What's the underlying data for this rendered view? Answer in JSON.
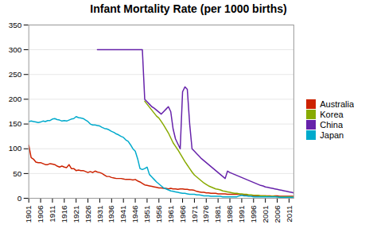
{
  "chart_data": {
    "type": "line",
    "title": "Infant Mortality Rate (per 1000 births)",
    "xlim": [
      1901,
      2013
    ],
    "xticks": [
      1901,
      1906,
      1911,
      1916,
      1921,
      1926,
      1931,
      1936,
      1941,
      1946,
      1951,
      1956,
      1961,
      1966,
      1971,
      1976,
      1981,
      1986,
      1991,
      1996,
      2001,
      2006,
      2011
    ],
    "ylim": [
      0,
      350
    ],
    "yticks": [
      0,
      50,
      100,
      150,
      200,
      250,
      300,
      350
    ],
    "grid": true,
    "legend": "right",
    "series": [
      {
        "name": "Australia",
        "color": "#cc2200",
        "x": [
          1901,
          1902,
          1903,
          1904,
          1905,
          1906,
          1907,
          1908,
          1909,
          1910,
          1911,
          1912,
          1913,
          1914,
          1915,
          1916,
          1917,
          1918,
          1919,
          1920,
          1921,
          1922,
          1923,
          1924,
          1925,
          1926,
          1927,
          1928,
          1929,
          1930,
          1931,
          1932,
          1933,
          1934,
          1935,
          1936,
          1937,
          1938,
          1939,
          1940,
          1941,
          1942,
          1943,
          1944,
          1945,
          1946,
          1947,
          1948,
          1949,
          1950,
          1951,
          1952,
          1953,
          1954,
          1955,
          1956,
          1957,
          1958,
          1959,
          1960,
          1961,
          1962,
          1963,
          1964,
          1965,
          1966,
          1967,
          1968,
          1969,
          1970,
          1971,
          1972,
          1973,
          1974,
          1975,
          1976,
          1977,
          1978,
          1979,
          1980,
          1981,
          1982,
          1983,
          1984,
          1985,
          1986,
          1987,
          1988,
          1989,
          1990,
          1991,
          1992,
          1993,
          1994,
          1995,
          1996,
          1997,
          1998,
          1999,
          2000,
          2001,
          2002,
          2003,
          2004,
          2005,
          2006,
          2007,
          2008,
          2009,
          2010,
          2011,
          2012,
          2013
        ],
        "values": [
          107,
          82,
          79,
          73,
          72,
          72,
          70,
          68,
          68,
          70,
          69,
          68,
          65,
          63,
          65,
          63,
          62,
          68,
          60,
          60,
          56,
          57,
          56,
          56,
          54,
          52,
          54,
          52,
          55,
          53,
          52,
          50,
          47,
          44,
          44,
          42,
          41,
          40,
          40,
          40,
          39,
          38,
          38,
          38,
          37,
          38,
          35,
          33,
          30,
          27,
          26,
          25,
          24,
          23,
          22,
          21,
          21,
          20,
          20,
          19,
          20,
          19,
          19,
          18,
          19,
          19,
          18,
          18,
          17,
          17,
          16,
          14,
          13,
          12,
          12,
          11,
          11,
          10,
          10,
          10,
          9,
          9,
          9,
          9,
          8,
          8,
          8,
          8,
          8,
          8,
          7,
          7,
          6,
          6,
          6,
          5,
          5,
          5,
          5,
          5,
          5,
          5,
          5,
          4,
          5,
          5,
          4,
          4,
          4,
          4,
          4,
          4,
          4
        ]
      },
      {
        "name": "Korea",
        "color": "#88aa00",
        "x": [
          1950,
          1951,
          1952,
          1953,
          1954,
          1955,
          1956,
          1957,
          1958,
          1959,
          1960,
          1961,
          1962,
          1963,
          1964,
          1965,
          1966,
          1967,
          1968,
          1969,
          1970,
          1971,
          1972,
          1973,
          1974,
          1975,
          1976,
          1977,
          1978,
          1979,
          1980,
          1981,
          1982,
          1983,
          1984,
          1985,
          1986,
          1987,
          1988,
          1989,
          1990,
          1991,
          1992,
          1993,
          1994,
          1995,
          1996,
          1997,
          1998,
          1999,
          2000,
          2001,
          2002,
          2003,
          2004,
          2005,
          2006,
          2007,
          2008,
          2009,
          2010,
          2011,
          2012,
          2013
        ],
        "values": [
          196,
          190,
          184,
          178,
          172,
          166,
          162,
          155,
          148,
          140,
          132,
          122,
          112,
          105,
          98,
          90,
          82,
          74,
          67,
          60,
          53,
          47,
          43,
          39,
          35,
          31,
          28,
          25,
          23,
          21,
          19,
          18,
          17,
          15,
          14,
          13,
          12,
          11,
          10,
          10,
          9,
          9,
          8,
          8,
          7,
          7,
          6,
          6,
          6,
          5,
          5,
          5,
          4,
          4,
          4,
          4,
          3,
          3,
          3,
          3,
          3,
          3,
          3,
          3
        ]
      },
      {
        "name": "China",
        "color": "#6622aa",
        "x": [
          1930,
          1931,
          1932,
          1933,
          1934,
          1935,
          1936,
          1937,
          1938,
          1939,
          1940,
          1941,
          1942,
          1943,
          1944,
          1945,
          1946,
          1947,
          1948,
          1949,
          1950,
          1951,
          1952,
          1953,
          1954,
          1955,
          1956,
          1957,
          1958,
          1959,
          1960,
          1961,
          1962,
          1963,
          1964,
          1965,
          1966,
          1967,
          1968,
          1969,
          1970,
          1971,
          1972,
          1973,
          1974,
          1975,
          1976,
          1977,
          1978,
          1979,
          1980,
          1981,
          1982,
          1983,
          1984,
          1985,
          1986,
          1987,
          1988,
          1989,
          1990,
          1991,
          1992,
          1993,
          1994,
          1995,
          1996,
          1997,
          1998,
          1999,
          2000,
          2001,
          2002,
          2003,
          2004,
          2005,
          2006,
          2007,
          2008,
          2009,
          2010,
          2011,
          2012,
          2013
        ],
        "values": [
          300,
          300,
          300,
          300,
          300,
          300,
          300,
          300,
          300,
          300,
          300,
          300,
          300,
          300,
          300,
          300,
          300,
          300,
          300,
          300,
          200,
          195,
          190,
          185,
          182,
          178,
          174,
          170,
          175,
          180,
          185,
          175,
          140,
          120,
          110,
          100,
          215,
          225,
          220,
          150,
          100,
          95,
          90,
          85,
          80,
          76,
          72,
          68,
          64,
          60,
          56,
          52,
          48,
          44,
          40,
          55,
          52,
          50,
          48,
          46,
          44,
          42,
          40,
          38,
          36,
          34,
          32,
          30,
          28,
          26,
          25,
          23,
          22,
          21,
          20,
          19,
          18,
          17,
          16,
          15,
          14,
          13,
          12,
          11
        ]
      },
      {
        "name": "Japan",
        "color": "#00aacc",
        "x": [
          1901,
          1902,
          1903,
          1904,
          1905,
          1906,
          1907,
          1908,
          1909,
          1910,
          1911,
          1912,
          1913,
          1914,
          1915,
          1916,
          1917,
          1918,
          1919,
          1920,
          1921,
          1922,
          1923,
          1924,
          1925,
          1926,
          1927,
          1928,
          1929,
          1930,
          1931,
          1932,
          1933,
          1934,
          1935,
          1936,
          1937,
          1938,
          1939,
          1940,
          1941,
          1942,
          1943,
          1944,
          1945,
          1946,
          1947,
          1948,
          1949,
          1950,
          1951,
          1952,
          1953,
          1954,
          1955,
          1956,
          1957,
          1958,
          1959,
          1960,
          1961,
          1962,
          1963,
          1964,
          1965,
          1966,
          1967,
          1968,
          1969,
          1970,
          1971,
          1972,
          1973,
          1974,
          1975,
          1976,
          1977,
          1978,
          1979,
          1980,
          1981,
          1982,
          1983,
          1984,
          1985,
          1986,
          1987,
          1988,
          1989,
          1990,
          1991,
          1992,
          1993,
          1994,
          1995,
          1996,
          1997,
          1998,
          1999,
          2000,
          2001,
          2002,
          2003,
          2004,
          2005,
          2006,
          2007,
          2008,
          2009,
          2010,
          2011,
          2012,
          2013
        ],
        "values": [
          155,
          156,
          155,
          154,
          153,
          154,
          156,
          155,
          157,
          157,
          160,
          161,
          159,
          158,
          156,
          157,
          156,
          158,
          160,
          161,
          165,
          163,
          162,
          161,
          158,
          155,
          150,
          148,
          148,
          147,
          146,
          143,
          141,
          140,
          138,
          135,
          133,
          130,
          128,
          125,
          123,
          118,
          115,
          108,
          100,
          95,
          80,
          60,
          58,
          60,
          63,
          48,
          43,
          38,
          33,
          29,
          25,
          21,
          19,
          17,
          15,
          14,
          13,
          12,
          11,
          10,
          10,
          9,
          8,
          8,
          8,
          7,
          7,
          6,
          5,
          5,
          5,
          4,
          4,
          4,
          4,
          4,
          3,
          3,
          3,
          3,
          3,
          3,
          3,
          5,
          6,
          5,
          5,
          4,
          4,
          3,
          3,
          3,
          3,
          3,
          3,
          3,
          3,
          3,
          3,
          3,
          2,
          2,
          2,
          2,
          2,
          2,
          2
        ]
      }
    ]
  }
}
